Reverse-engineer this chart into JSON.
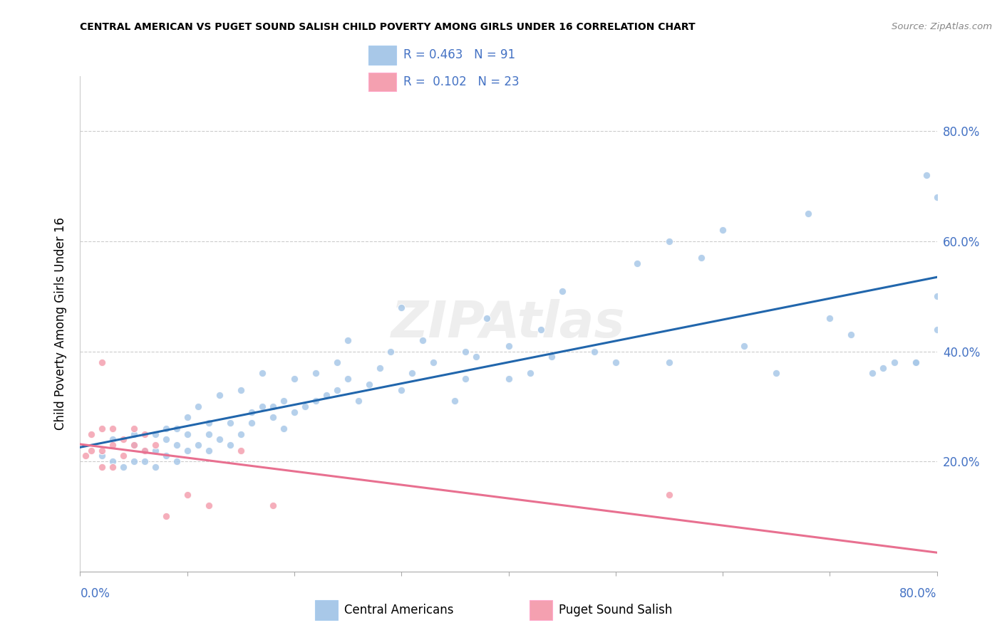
{
  "title": "CENTRAL AMERICAN VS PUGET SOUND SALISH CHILD POVERTY AMONG GIRLS UNDER 16 CORRELATION CHART",
  "source": "Source: ZipAtlas.com",
  "ylabel": "Child Poverty Among Girls Under 16",
  "legend_blue_r": "R = 0.463",
  "legend_blue_n": "N = 91",
  "legend_pink_r": "R = 0.102",
  "legend_pink_n": "N = 23",
  "blue_scatter_color": "#a8c8e8",
  "pink_scatter_color": "#f4a0b0",
  "blue_line_color": "#2166ac",
  "pink_line_color": "#e87090",
  "legend_text_color": "#4472c4",
  "right_axis_color": "#4472c4",
  "bottom_axis_color": "#4472c4",
  "background_color": "#ffffff",
  "grid_color": "#cccccc",
  "watermark": "ZIPAtlas",
  "xtick_left_label": "0.0%",
  "xtick_right_label": "80.0%",
  "bottom_legend_blue": "Central Americans",
  "bottom_legend_pink": "Puget Sound Salish",
  "xmin": 0.0,
  "xmax": 0.8,
  "ymin": 0.0,
  "ymax": 0.9,
  "ytick_values": [
    0.2,
    0.4,
    0.6,
    0.8
  ],
  "ytick_labels": [
    "20.0%",
    "40.0%",
    "60.0%",
    "80.0%"
  ],
  "blue_x": [
    0.02,
    0.03,
    0.03,
    0.04,
    0.05,
    0.05,
    0.05,
    0.06,
    0.06,
    0.07,
    0.07,
    0.07,
    0.08,
    0.08,
    0.08,
    0.09,
    0.09,
    0.09,
    0.1,
    0.1,
    0.1,
    0.11,
    0.11,
    0.12,
    0.12,
    0.12,
    0.13,
    0.13,
    0.14,
    0.14,
    0.15,
    0.15,
    0.16,
    0.16,
    0.17,
    0.17,
    0.18,
    0.18,
    0.19,
    0.19,
    0.2,
    0.2,
    0.21,
    0.22,
    0.22,
    0.23,
    0.24,
    0.24,
    0.25,
    0.25,
    0.26,
    0.27,
    0.28,
    0.29,
    0.3,
    0.3,
    0.31,
    0.32,
    0.33,
    0.35,
    0.36,
    0.36,
    0.37,
    0.38,
    0.4,
    0.4,
    0.42,
    0.43,
    0.44,
    0.45,
    0.48,
    0.5,
    0.52,
    0.55,
    0.55,
    0.58,
    0.6,
    0.62,
    0.65,
    0.68,
    0.7,
    0.72,
    0.74,
    0.76,
    0.78,
    0.79,
    0.8,
    0.8,
    0.8,
    0.78,
    0.75
  ],
  "blue_y": [
    0.21,
    0.2,
    0.24,
    0.19,
    0.2,
    0.23,
    0.25,
    0.2,
    0.22,
    0.19,
    0.22,
    0.25,
    0.21,
    0.24,
    0.26,
    0.2,
    0.23,
    0.26,
    0.22,
    0.25,
    0.28,
    0.23,
    0.3,
    0.22,
    0.25,
    0.27,
    0.24,
    0.32,
    0.23,
    0.27,
    0.25,
    0.33,
    0.27,
    0.29,
    0.3,
    0.36,
    0.28,
    0.3,
    0.26,
    0.31,
    0.29,
    0.35,
    0.3,
    0.31,
    0.36,
    0.32,
    0.33,
    0.38,
    0.35,
    0.42,
    0.31,
    0.34,
    0.37,
    0.4,
    0.33,
    0.48,
    0.36,
    0.42,
    0.38,
    0.31,
    0.35,
    0.4,
    0.39,
    0.46,
    0.35,
    0.41,
    0.36,
    0.44,
    0.39,
    0.51,
    0.4,
    0.38,
    0.56,
    0.6,
    0.38,
    0.57,
    0.62,
    0.41,
    0.36,
    0.65,
    0.46,
    0.43,
    0.36,
    0.38,
    0.38,
    0.72,
    0.44,
    0.5,
    0.68,
    0.38,
    0.37
  ],
  "pink_x": [
    0.005,
    0.01,
    0.01,
    0.02,
    0.02,
    0.02,
    0.02,
    0.03,
    0.03,
    0.03,
    0.04,
    0.04,
    0.05,
    0.05,
    0.06,
    0.06,
    0.07,
    0.08,
    0.1,
    0.12,
    0.15,
    0.18,
    0.55
  ],
  "pink_y": [
    0.21,
    0.22,
    0.25,
    0.19,
    0.22,
    0.26,
    0.38,
    0.19,
    0.23,
    0.26,
    0.21,
    0.24,
    0.23,
    0.26,
    0.22,
    0.25,
    0.23,
    0.1,
    0.14,
    0.12,
    0.22,
    0.12,
    0.14
  ]
}
